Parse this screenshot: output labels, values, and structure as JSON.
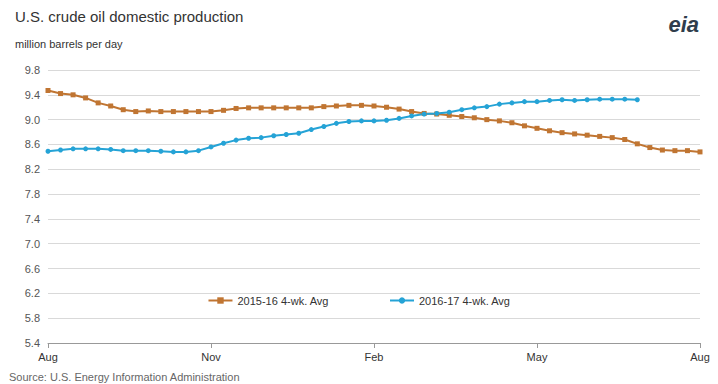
{
  "chart_data": {
    "type": "line",
    "title": "U.S. crude oil domestic production",
    "subtitle": "million barrels per day",
    "source": "Source: U.S. Energy Information Administration",
    "logo": "eia",
    "categories": [
      "Aug",
      null,
      null,
      null,
      null,
      null,
      null,
      null,
      null,
      null,
      null,
      null,
      null,
      "Nov",
      null,
      null,
      null,
      null,
      null,
      null,
      null,
      null,
      null,
      null,
      null,
      null,
      "Feb",
      null,
      null,
      null,
      null,
      null,
      null,
      null,
      null,
      null,
      null,
      null,
      null,
      "May",
      null,
      null,
      null,
      null,
      null,
      null,
      null,
      null,
      null,
      null,
      null,
      null,
      "Aug"
    ],
    "series": [
      {
        "name": "2015-16 4-wk. Avg",
        "color": "#c07532",
        "marker": "square",
        "values": [
          9.47,
          9.42,
          9.4,
          9.35,
          9.27,
          9.22,
          9.16,
          9.13,
          9.14,
          9.13,
          9.13,
          9.13,
          9.13,
          9.13,
          9.15,
          9.18,
          9.19,
          9.19,
          9.19,
          9.19,
          9.19,
          9.19,
          9.21,
          9.22,
          9.23,
          9.23,
          9.22,
          9.2,
          9.17,
          9.13,
          9.1,
          9.09,
          9.07,
          9.05,
          9.03,
          9.0,
          8.98,
          8.95,
          8.9,
          8.86,
          8.82,
          8.79,
          8.77,
          8.75,
          8.73,
          8.71,
          8.68,
          8.61,
          8.55,
          8.51,
          8.5,
          8.5,
          8.48
        ]
      },
      {
        "name": "2016-17 4-wk. Avg",
        "color": "#25a3d6",
        "marker": "circle",
        "values": [
          8.49,
          8.51,
          8.53,
          8.53,
          8.53,
          8.52,
          8.5,
          8.5,
          8.5,
          8.49,
          8.48,
          8.48,
          8.5,
          8.56,
          8.62,
          8.67,
          8.7,
          8.71,
          8.74,
          8.76,
          8.78,
          8.84,
          8.89,
          8.94,
          8.97,
          8.98,
          8.98,
          8.99,
          9.02,
          9.06,
          9.09,
          9.1,
          9.12,
          9.16,
          9.19,
          9.21,
          9.25,
          9.27,
          9.29,
          9.29,
          9.31,
          9.32,
          9.31,
          9.32,
          9.33,
          9.33,
          9.33,
          9.32,
          null,
          null,
          null,
          null,
          null
        ]
      }
    ],
    "ylim": [
      5.4,
      9.8
    ],
    "yticks": [
      5.4,
      5.8,
      6.2,
      6.6,
      {
        "value": 7,
        "label": "7.0"
      },
      7.4,
      7.8,
      8.2,
      8.6,
      {
        "value": 9,
        "label": "9.0"
      },
      9.4,
      9.8
    ],
    "grid": true,
    "legend": "bottom"
  }
}
